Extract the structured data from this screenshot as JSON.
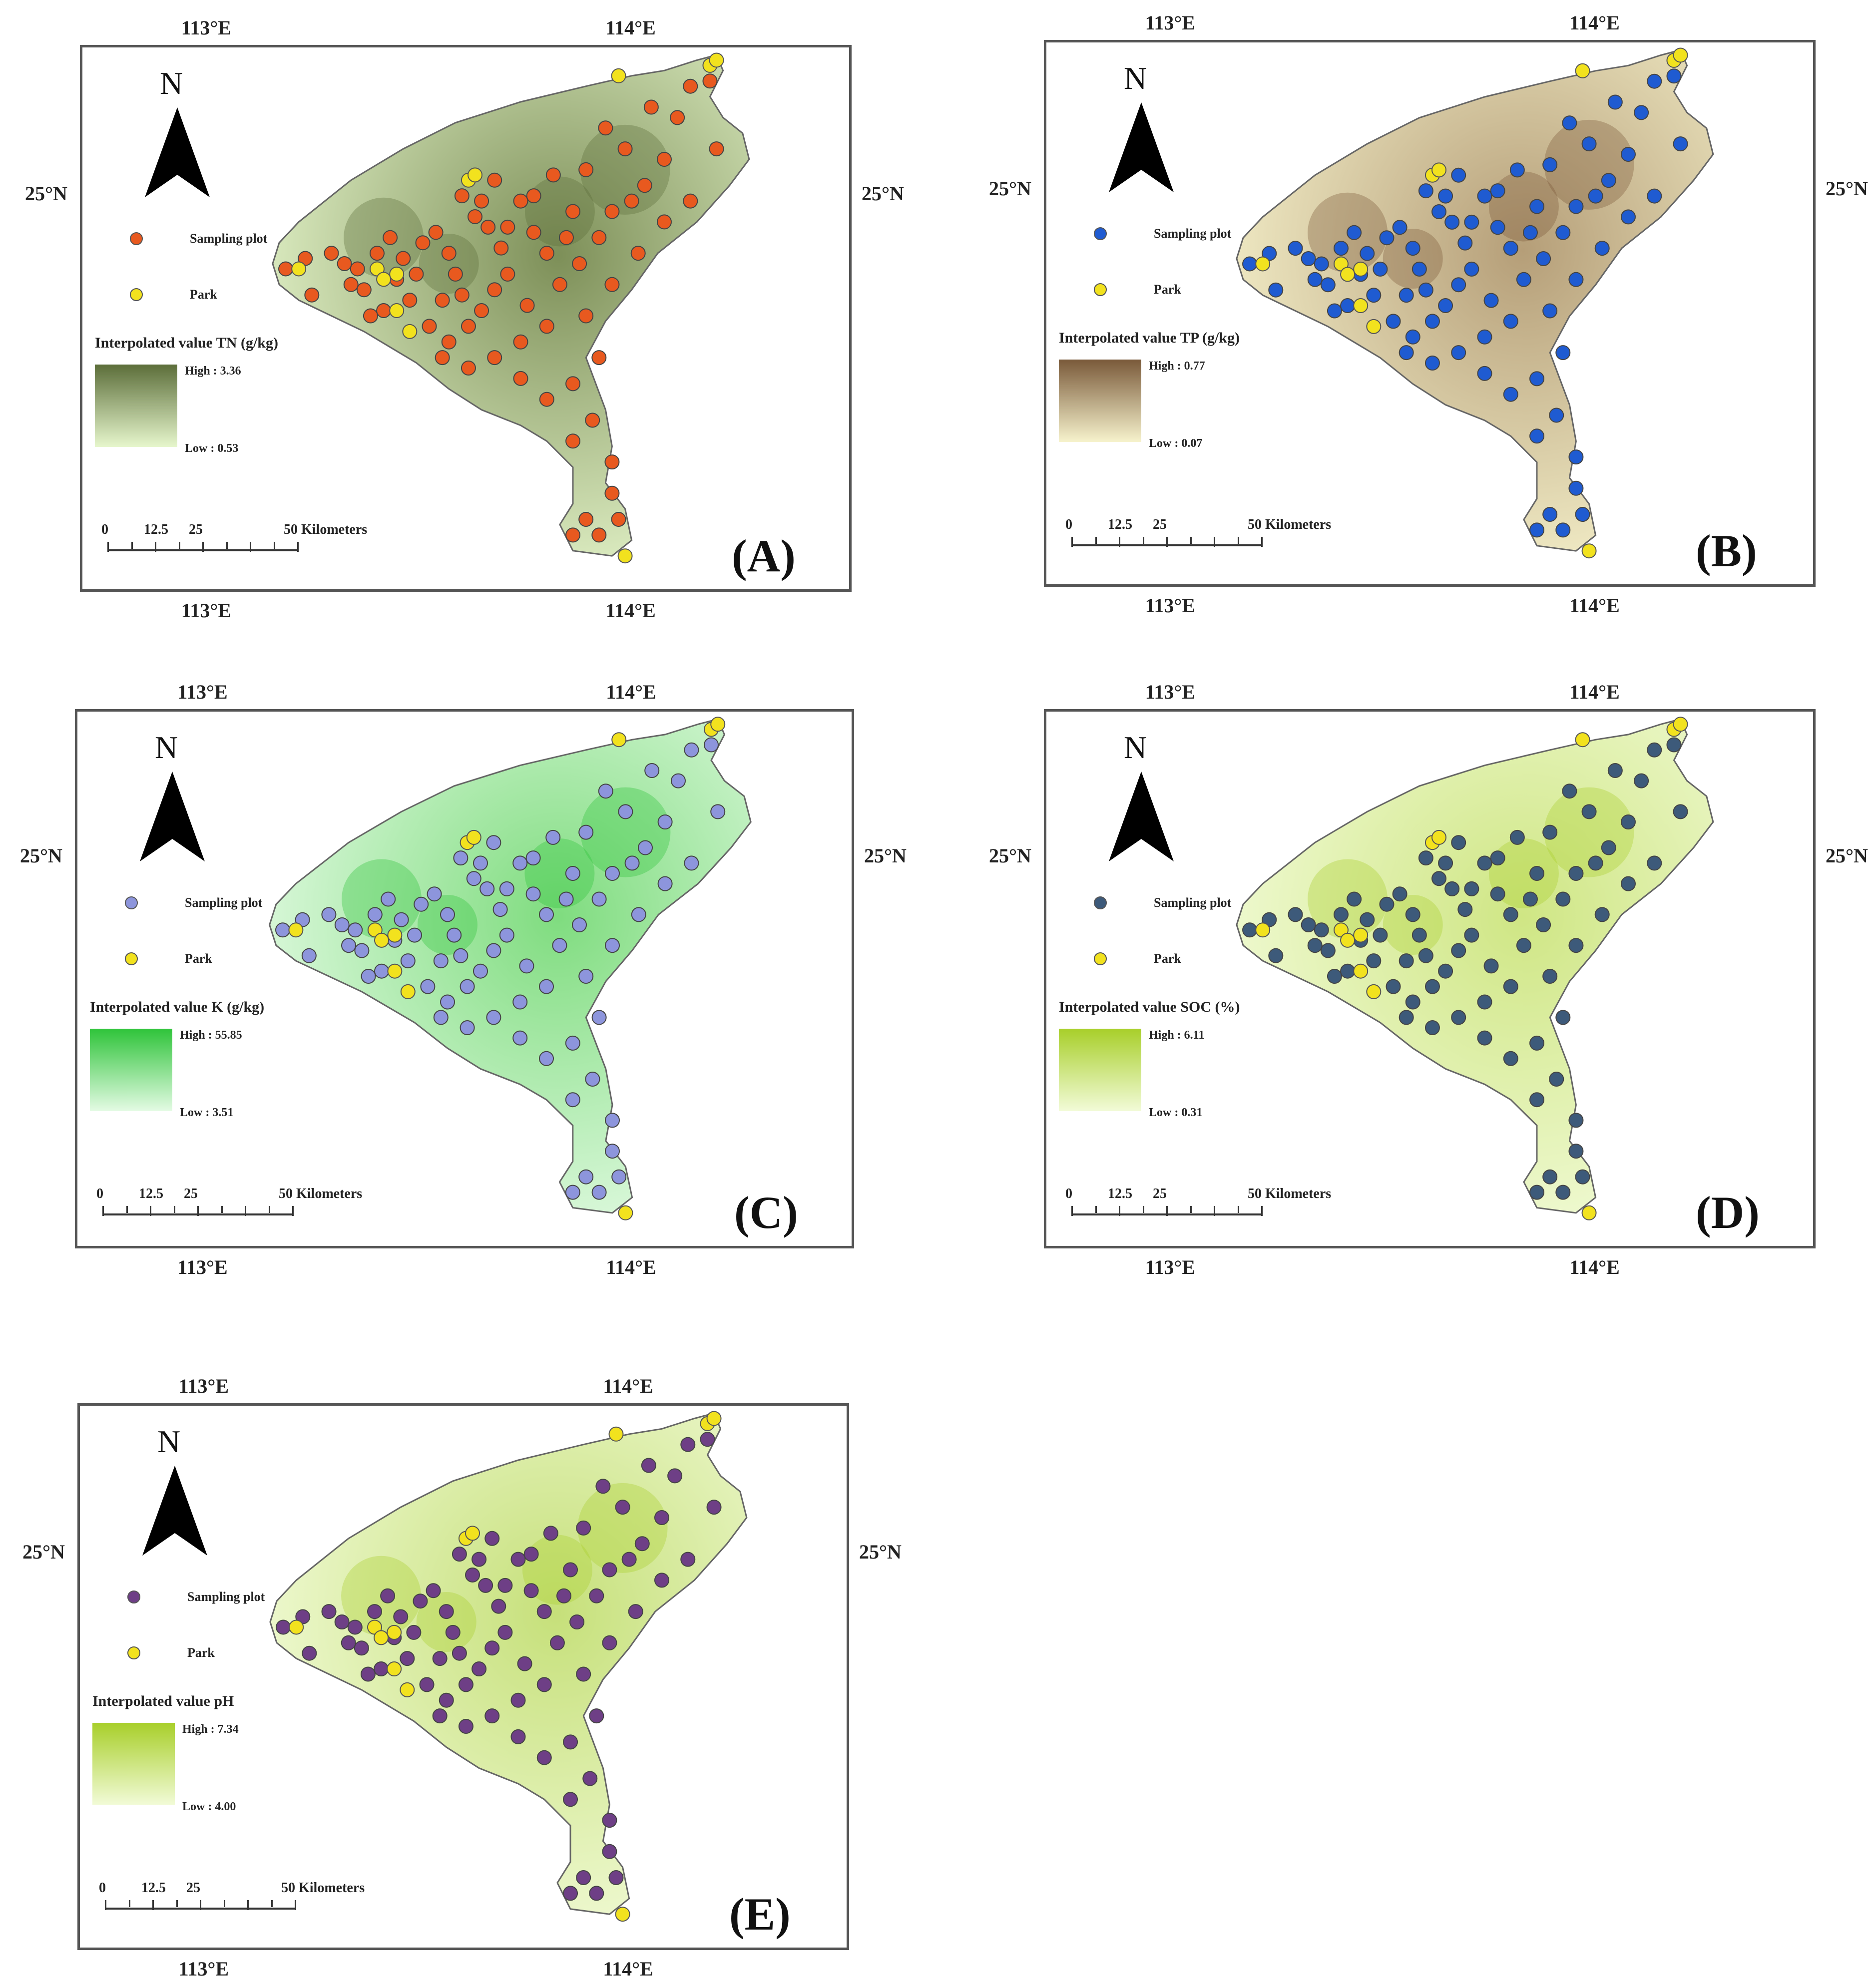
{
  "figure": {
    "panels": [
      {
        "id": "A",
        "label": "(A)",
        "lon_top": [
          "113°E",
          "114°E"
        ],
        "lon_bottom": [
          "113°E",
          "114°E"
        ],
        "lat_left": "25°N",
        "lat_right": "25°N",
        "north_label": "N",
        "legend": {
          "sampling_label": "Sampling plot",
          "park_label": "Park",
          "sampling_color": "#e8591f",
          "park_color": "#f2e21e"
        },
        "ramp": {
          "title": "Interpolated value TN (g/kg)",
          "high_label": "High : 3.36",
          "low_label": "Low : 0.53",
          "high_color": "#5c6e3a",
          "low_color": "#e6f6cc"
        },
        "fill_color": "#7d8f58",
        "scale": {
          "ticks": [
            "0",
            "12.5",
            "25",
            "50 Kilometers"
          ]
        }
      },
      {
        "id": "B",
        "label": "(B)",
        "lon_top": [
          "113°E",
          "114°E"
        ],
        "lon_bottom": [
          "113°E",
          "114°E"
        ],
        "lat_left": "25°N",
        "lat_right": "25°N",
        "north_label": "N",
        "legend": {
          "sampling_label": "Sampling plot",
          "park_label": "Park",
          "sampling_color": "#1f5bd1",
          "park_color": "#f2e21e"
        },
        "ramp": {
          "title": "Interpolated value TP (g/kg)",
          "high_label": "High : 0.77",
          "low_label": "Low : 0.07",
          "high_color": "#7a5a3a",
          "low_color": "#f6f2cc"
        },
        "fill_color": "#b59e78",
        "scale": {
          "ticks": [
            "0",
            "12.5",
            "25",
            "50 Kilometers"
          ]
        }
      },
      {
        "id": "C",
        "label": "(C)",
        "lon_top": [
          "113°E",
          "114°E"
        ],
        "lon_bottom": [
          "113°E",
          "114°E"
        ],
        "lat_left": "25°N",
        "lat_right": "25°N",
        "north_label": "N",
        "legend": {
          "sampling_label": "Sampling plot",
          "park_label": "Park",
          "sampling_color": "#8d95dc",
          "park_color": "#f2e21e"
        },
        "ramp": {
          "title": "Interpolated value K (g/kg)",
          "high_label": "High : 55.85",
          "low_label": "Low : 3.51",
          "high_color": "#2fc43a",
          "low_color": "#e4fbe4"
        },
        "fill_color": "#7fdc7f",
        "scale": {
          "ticks": [
            "0",
            "12.5",
            "25",
            "50 Kilometers"
          ]
        }
      },
      {
        "id": "D",
        "label": "(D)",
        "lon_top": [
          "113°E",
          "114°E"
        ],
        "lon_bottom": [
          "113°E",
          "114°E"
        ],
        "lat_left": "25°N",
        "lat_right": "25°N",
        "north_label": "N",
        "legend": {
          "sampling_label": "Sampling plot",
          "park_label": "Park",
          "sampling_color": "#3d5a7a",
          "park_color": "#f2e21e"
        },
        "ramp": {
          "title": "Interpolated value SOC (%)",
          "high_label": "High : 6.11",
          "low_label": "Low : 0.31",
          "high_color": "#a8cf2a",
          "low_color": "#f2fbd8"
        },
        "fill_color": "#cfe684",
        "scale": {
          "ticks": [
            "0",
            "12.5",
            "25",
            "50 Kilometers"
          ]
        }
      },
      {
        "id": "E",
        "label": "(E)",
        "lon_top": [
          "113°E",
          "114°E"
        ],
        "lon_bottom": [
          "113°E",
          "114°E"
        ],
        "lat_left": "25°N",
        "lat_right": "25°N",
        "north_label": "N",
        "legend": {
          "sampling_label": "Sampling plot",
          "park_label": "Park",
          "sampling_color": "#6e3f86",
          "park_color": "#f2e21e"
        },
        "ramp": {
          "title": "Interpolated value pH",
          "high_label": "High : 7.34",
          "low_label": "Low : 4.00",
          "high_color": "#a8cf2a",
          "low_color": "#f2fbd8"
        },
        "fill_color": "#c6e07a",
        "scale": {
          "ticks": [
            "0",
            "12.5",
            "25",
            "50 Kilometers"
          ]
        }
      }
    ]
  }
}
